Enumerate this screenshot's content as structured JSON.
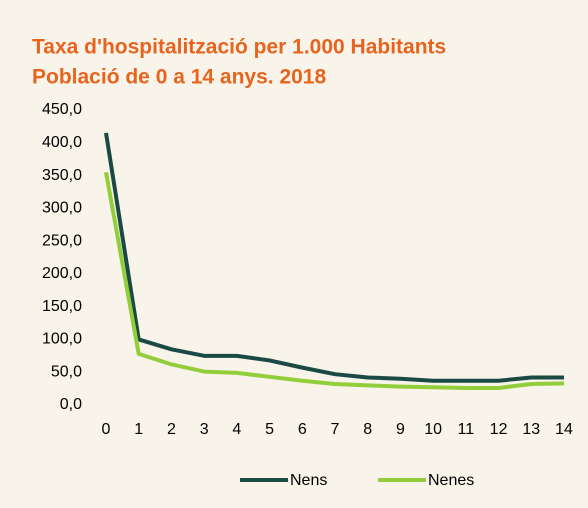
{
  "chart_data": {
    "type": "line",
    "title": "Taxa d'hospitalització per 1.000 Habitants",
    "subtitle": "Població de 0 a 14 anys. 2018",
    "categories": [
      "0",
      "1",
      "2",
      "3",
      "4",
      "5",
      "6",
      "7",
      "8",
      "9",
      "10",
      "11",
      "12",
      "13",
      "14"
    ],
    "series": [
      {
        "name": "Nens",
        "color": "#1b4a44",
        "values": [
          415,
          100,
          85,
          75,
          75,
          68,
          57,
          47,
          42,
          40,
          37,
          37,
          37,
          42,
          42
        ]
      },
      {
        "name": "Nenes",
        "color": "#92cd3c",
        "values": [
          355,
          78,
          62,
          51,
          49,
          43,
          37,
          32,
          30,
          28,
          27,
          26,
          26,
          32,
          33
        ]
      }
    ],
    "ylim": [
      0,
      450
    ],
    "yticks": [
      {
        "value": 0,
        "label": "0,0"
      },
      {
        "value": 50,
        "label": "50,0"
      },
      {
        "value": 100,
        "label": "100,0"
      },
      {
        "value": 150,
        "label": "150,0"
      },
      {
        "value": 200,
        "label": "200,0"
      },
      {
        "value": 250,
        "label": "250,0"
      },
      {
        "value": 300,
        "label": "300,0"
      },
      {
        "value": 350,
        "label": "350,0"
      },
      {
        "value": 400,
        "label": "400,0"
      },
      {
        "value": 450,
        "label": "450,0"
      }
    ],
    "grid": false,
    "legend": "bottom"
  }
}
